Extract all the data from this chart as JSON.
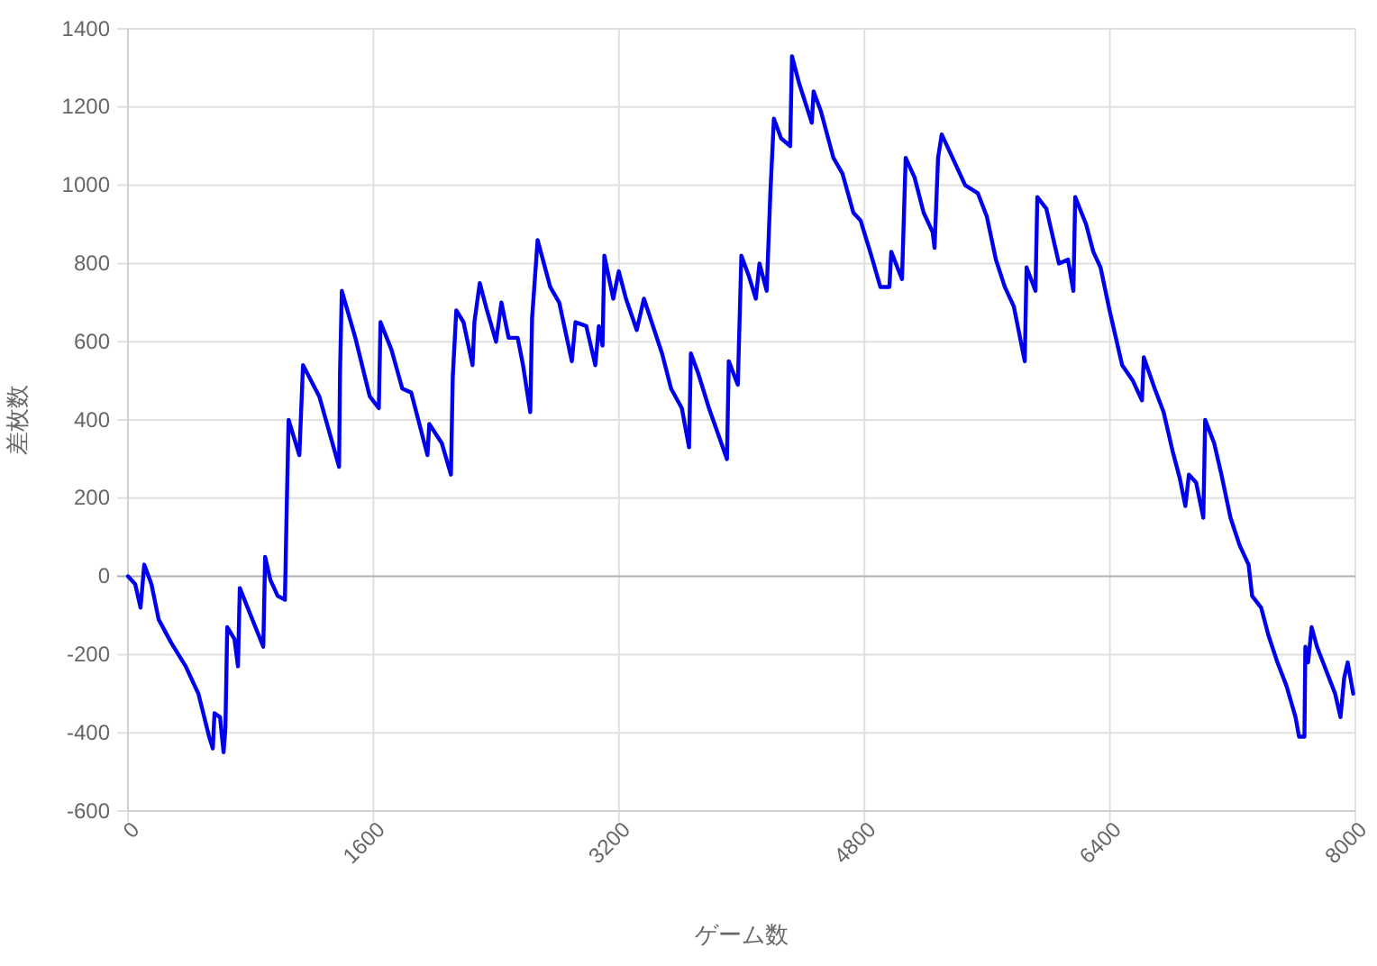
{
  "chart_data": {
    "type": "line",
    "xlabel": "ゲーム数",
    "ylabel": "差枚数",
    "xlim": [
      0,
      8000
    ],
    "xticks": [
      0,
      1600,
      3200,
      4800,
      6400,
      8000
    ],
    "ylim": [
      -600,
      1400
    ],
    "yticks": [
      -600,
      -400,
      -200,
      0,
      200,
      400,
      600,
      800,
      1000,
      1200,
      1400
    ],
    "grid": true,
    "marker": "none",
    "line_style": "solid",
    "series": [
      {
        "color": "#0000ee",
        "x": [
          0,
          47,
          82,
          106,
          153,
          200,
          282,
          376,
          459,
          529,
          553,
          564,
          600,
          623,
          635,
          647,
          694,
          717,
          729,
          882,
          894,
          929,
          976,
          1023,
          1035,
          1047,
          1117,
          1141,
          1247,
          1376,
          1382,
          1394,
          1482,
          1576,
          1635,
          1646,
          1717,
          1788,
          1846,
          1952,
          1964,
          2046,
          2105,
          2117,
          2140,
          2187,
          2246,
          2258,
          2293,
          2340,
          2399,
          2434,
          2481,
          2540,
          2575,
          2622,
          2634,
          2670,
          2752,
          2811,
          2893,
          2917,
          2987,
          3046,
          3069,
          3093,
          3105,
          3163,
          3199,
          3246,
          3316,
          3363,
          3481,
          3540,
          3610,
          3657,
          3669,
          3716,
          3787,
          3904,
          3916,
          3975,
          3998,
          4045,
          4092,
          4116,
          4163,
          4187,
          4210,
          4257,
          4316,
          4328,
          4375,
          4457,
          4469,
          4516,
          4598,
          4657,
          4728,
          4775,
          4845,
          4904,
          4963,
          4975,
          5045,
          5069,
          5127,
          5186,
          5245,
          5257,
          5280,
          5304,
          5398,
          5457,
          5539,
          5598,
          5657,
          5715,
          5774,
          5845,
          5857,
          5915,
          5927,
          5986,
          6068,
          6127,
          6162,
          6174,
          6245,
          6292,
          6339,
          6398,
          6480,
          6550,
          6609,
          6621,
          6692,
          6750,
          6809,
          6856,
          6892,
          6915,
          6962,
          7009,
          7021,
          7080,
          7127,
          7186,
          7245,
          7304,
          7327,
          7386,
          7433,
          7492,
          7551,
          7610,
          7633,
          7668,
          7674,
          7692,
          7715,
          7750,
          7809,
          7868,
          7903,
          7927,
          7950,
          7986
        ],
        "values": [
          0,
          -20,
          -80,
          30,
          -20,
          -110,
          -170,
          -230,
          -300,
          -410,
          -440,
          -350,
          -360,
          -450,
          -390,
          -130,
          -160,
          -230,
          -30,
          -180,
          50,
          -10,
          -50,
          -60,
          180,
          400,
          310,
          540,
          460,
          280,
          520,
          730,
          610,
          460,
          430,
          650,
          580,
          480,
          470,
          310,
          390,
          340,
          260,
          510,
          680,
          650,
          540,
          650,
          750,
          680,
          600,
          700,
          610,
          610,
          540,
          420,
          660,
          860,
          740,
          700,
          550,
          650,
          640,
          540,
          640,
          590,
          820,
          710,
          780,
          710,
          630,
          710,
          570,
          480,
          430,
          330,
          570,
          520,
          430,
          300,
          550,
          490,
          820,
          770,
          710,
          800,
          730,
          980,
          1170,
          1120,
          1100,
          1330,
          1260,
          1160,
          1240,
          1190,
          1070,
          1030,
          930,
          910,
          820,
          740,
          740,
          830,
          760,
          1070,
          1020,
          930,
          880,
          840,
          1070,
          1130,
          1050,
          1000,
          980,
          920,
          810,
          740,
          690,
          550,
          790,
          730,
          970,
          940,
          800,
          810,
          730,
          970,
          900,
          830,
          790,
          680,
          540,
          500,
          450,
          560,
          480,
          420,
          320,
          250,
          180,
          260,
          240,
          150,
          400,
          340,
          260,
          150,
          80,
          30,
          -50,
          -80,
          -150,
          -220,
          -280,
          -360,
          -410,
          -410,
          -180,
          -220,
          -130,
          -180,
          -240,
          -300,
          -360,
          -260,
          -220,
          -300
        ]
      }
    ]
  }
}
